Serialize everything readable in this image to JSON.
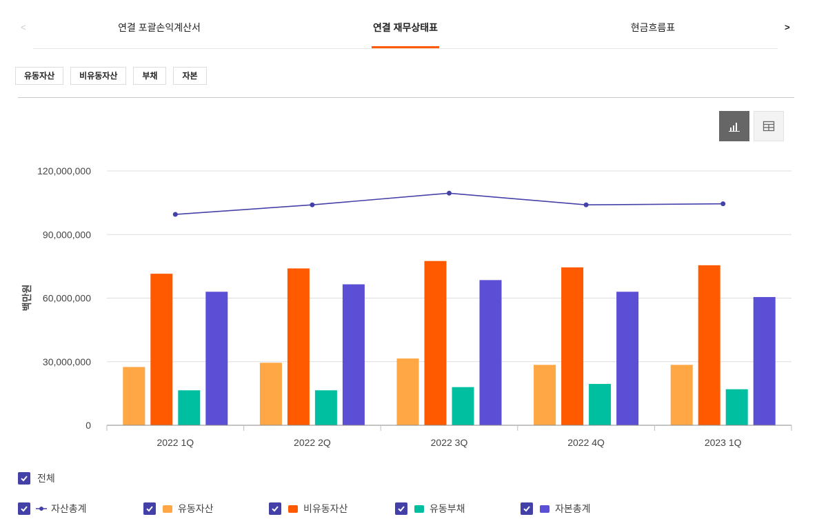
{
  "tabs": {
    "prev_arrow": "<",
    "next_arrow": ">",
    "items": [
      "연결 포괄손익계산서",
      "연결 재무상태표",
      "현금흐름표"
    ],
    "active_index": 1
  },
  "filters": [
    "유동자산",
    "비유동자산",
    "부채",
    "자본"
  ],
  "view_toggle": {
    "chart": "chart-view",
    "table": "table-view",
    "active": "chart"
  },
  "legend": {
    "all_label": "전체",
    "items": [
      "자산총계",
      "유동자산",
      "비유동자산",
      "유동부채",
      "자본총계"
    ]
  },
  "chart_data": {
    "type": "bar",
    "ylabel": "백만원",
    "ylim": [
      0,
      120000000
    ],
    "yticks": [
      0,
      30000000,
      60000000,
      90000000,
      120000000
    ],
    "ytick_labels": [
      "0",
      "30,000,000",
      "60,000,000",
      "90,000,000",
      "120,000,000"
    ],
    "grid": true,
    "categories": [
      "2022 1Q",
      "2022 2Q",
      "2022 3Q",
      "2022 4Q",
      "2023 1Q"
    ],
    "series": [
      {
        "name": "유동자산",
        "kind": "bar",
        "color": "#ffa645",
        "values": [
          27500000,
          29500000,
          31500000,
          28500000,
          28500000
        ]
      },
      {
        "name": "비유동자산",
        "kind": "bar",
        "color": "#ff5a00",
        "values": [
          71500000,
          74000000,
          77500000,
          74500000,
          75500000
        ]
      },
      {
        "name": "유동부채",
        "kind": "bar",
        "color": "#00bfa0",
        "values": [
          16500000,
          16500000,
          18000000,
          19500000,
          17000000
        ]
      },
      {
        "name": "자본총계",
        "kind": "bar",
        "color": "#5b4fd6",
        "values": [
          63000000,
          66500000,
          68500000,
          63000000,
          60500000
        ]
      },
      {
        "name": "자산총계",
        "kind": "line",
        "color": "#4340a8",
        "values": [
          99500000,
          104000000,
          109500000,
          104000000,
          104500000
        ]
      }
    ]
  }
}
